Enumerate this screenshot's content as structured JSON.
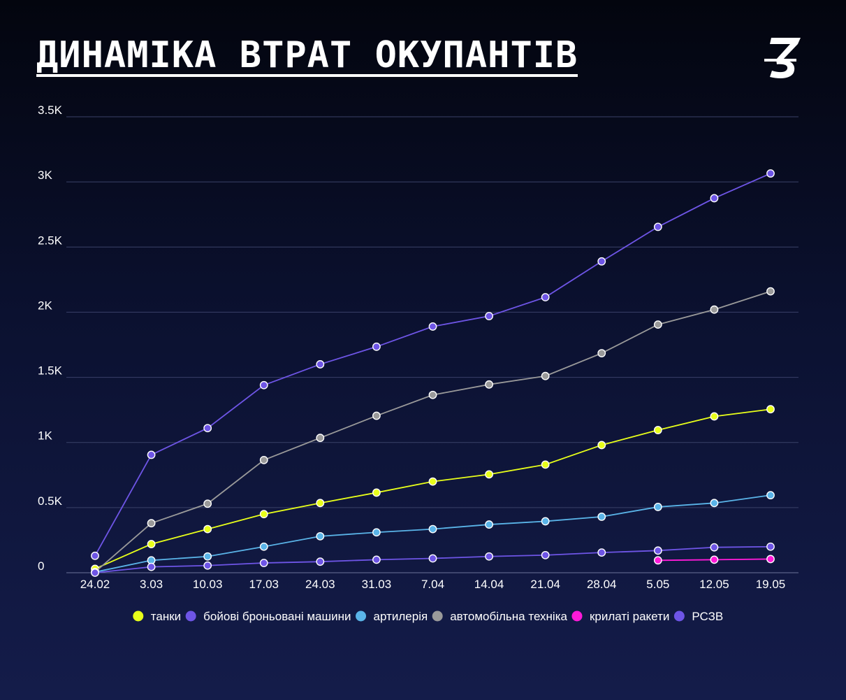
{
  "header": {
    "title": "ДИНАМІКА ВТРАТ ОКУПАНТІВ",
    "logo_icon": "z-slash-logo-icon"
  },
  "chart_data": {
    "type": "line",
    "x": [
      "24.02",
      "3.03",
      "10.03",
      "17.03",
      "24.03",
      "31.03",
      "7.04",
      "14.04",
      "21.04",
      "28.04",
      "5.05",
      "12.05",
      "19.05"
    ],
    "ylim": [
      0,
      3500
    ],
    "yticks": [
      0,
      500,
      1000,
      1500,
      2000,
      2500,
      3000,
      3500
    ],
    "ytick_labels": [
      "0",
      "0.5K",
      "1K",
      "1.5K",
      "2K",
      "2.5K",
      "3K",
      "3.5K"
    ],
    "grid": true,
    "legend_position": "bottom",
    "series": [
      {
        "name": "танки",
        "color": "#e8ff1a",
        "values": [
          30,
          220,
          335,
          450,
          535,
          615,
          700,
          755,
          830,
          980,
          1095,
          1200,
          1255
        ]
      },
      {
        "name": "бойові броньовані машини",
        "color": "#6e55e6",
        "values": [
          130,
          905,
          1110,
          1440,
          1600,
          1735,
          1890,
          1970,
          2115,
          2390,
          2655,
          2875,
          3065
        ]
      },
      {
        "name": "артилерія",
        "color": "#5ab4e8",
        "values": [
          5,
          95,
          125,
          200,
          280,
          310,
          335,
          370,
          395,
          430,
          505,
          535,
          595
        ]
      },
      {
        "name": "автомобільна техніка",
        "color": "#9a9a9a",
        "values": [
          5,
          380,
          530,
          865,
          1035,
          1205,
          1365,
          1445,
          1510,
          1685,
          1905,
          2020,
          2160
        ]
      },
      {
        "name": "крилаті ракети",
        "color": "#ff1ad9",
        "values": [
          null,
          null,
          null,
          null,
          null,
          null,
          null,
          null,
          null,
          null,
          95,
          100,
          105
        ]
      },
      {
        "name": "РСЗВ",
        "color": "#6e55e6",
        "values": [
          0,
          45,
          55,
          75,
          85,
          100,
          110,
          125,
          135,
          155,
          170,
          195,
          200
        ]
      }
    ]
  }
}
